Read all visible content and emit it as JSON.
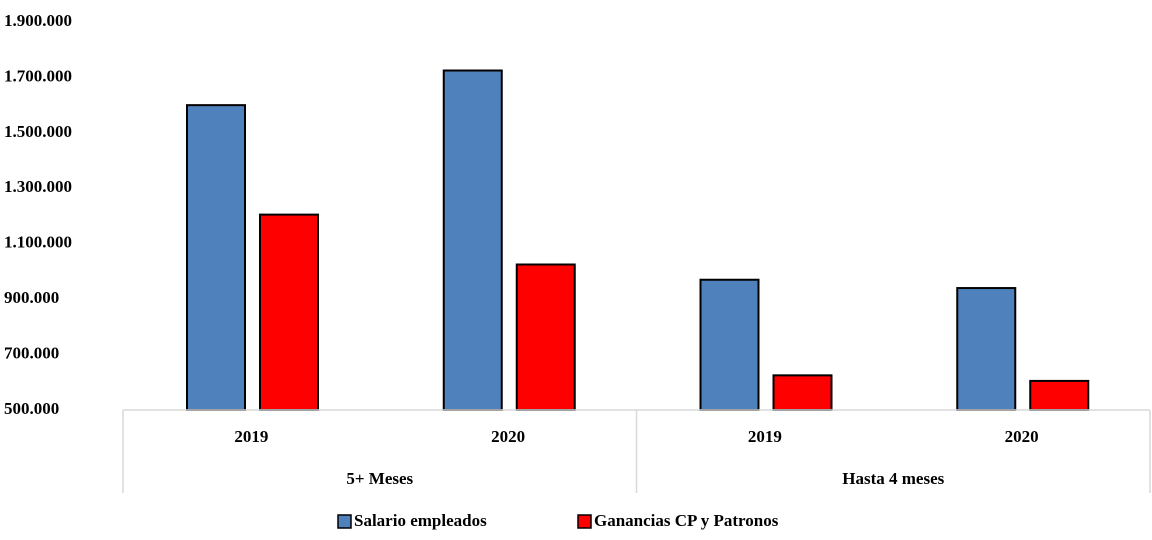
{
  "chart_data": {
    "type": "bar",
    "categories": [
      "2019",
      "2020",
      "2019",
      "2020"
    ],
    "groups": [
      "5+ Meses",
      "Hasta 4 meses"
    ],
    "series": [
      {
        "name": "Salario empleados",
        "color": "#4f81bd",
        "values": [
          1600000,
          1725000,
          970000,
          940000
        ]
      },
      {
        "name": "Ganancias CP y Patronos",
        "color": "#ff0000",
        "values": [
          1205000,
          1025000,
          625000,
          605000
        ]
      }
    ],
    "ylim": [
      500000,
      1900000
    ],
    "yticks": [
      {
        "value": 500000,
        "label": "500.000"
      },
      {
        "value": 700000,
        "label": "700.000"
      },
      {
        "value": 900000,
        "label": "900.000"
      },
      {
        "value": 1100000,
        "label": "1.100.000"
      },
      {
        "value": 1300000,
        "label": "1.300.000"
      },
      {
        "value": 1500000,
        "label": "1.500.000"
      },
      {
        "value": 1700000,
        "label": "1.700.000"
      },
      {
        "value": 1900000,
        "label": "1.900.000"
      }
    ],
    "grid": false,
    "legend": "bottom"
  }
}
